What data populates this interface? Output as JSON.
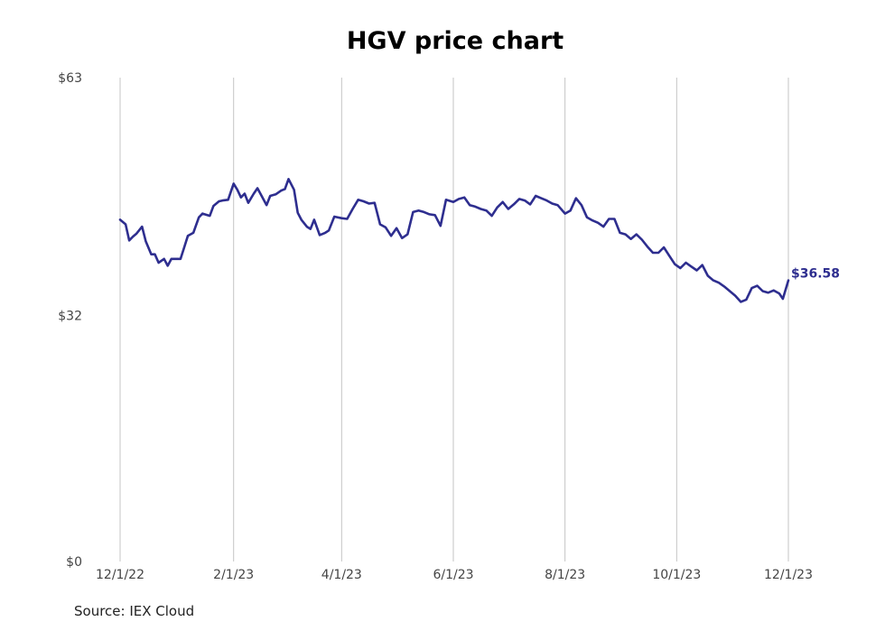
{
  "chart_data": {
    "type": "line",
    "title": "HGV price chart",
    "source": "Source: IEX Cloud",
    "xlabel": "",
    "ylabel": "",
    "x_tick_labels": [
      "12/1/22",
      "2/1/23",
      "4/1/23",
      "6/1/23",
      "8/1/23",
      "10/1/23",
      "12/1/23"
    ],
    "x_tick_dates": [
      "2022-12-01",
      "2023-02-01",
      "2023-04-01",
      "2023-06-01",
      "2023-08-01",
      "2023-10-01",
      "2023-12-01"
    ],
    "y_tick_values": [
      0,
      32,
      63
    ],
    "y_tick_labels": [
      "$0",
      "$32",
      "$63"
    ],
    "ylim": [
      0,
      63
    ],
    "xlim": [
      "2022-12-01",
      "2023-12-01"
    ],
    "grid": "vertical",
    "line_color": "#2e2e8f",
    "last_value_label": "$36.58",
    "series": [
      {
        "points": [
          [
            "2022-12-01",
            44.5
          ],
          [
            "2022-12-04",
            43.9
          ],
          [
            "2022-12-06",
            41.8
          ],
          [
            "2022-12-08",
            42.3
          ],
          [
            "2022-12-10",
            42.7
          ],
          [
            "2022-12-13",
            43.6
          ],
          [
            "2022-12-15",
            41.7
          ],
          [
            "2022-12-18",
            40.0
          ],
          [
            "2022-12-20",
            40.0
          ],
          [
            "2022-12-22",
            38.9
          ],
          [
            "2022-12-25",
            39.4
          ],
          [
            "2022-12-27",
            38.5
          ],
          [
            "2022-12-29",
            39.4
          ],
          [
            "2023-01-03",
            39.4
          ],
          [
            "2023-01-05",
            40.9
          ],
          [
            "2023-01-07",
            42.4
          ],
          [
            "2023-01-10",
            42.8
          ],
          [
            "2023-01-13",
            44.8
          ],
          [
            "2023-01-15",
            45.3
          ],
          [
            "2023-01-19",
            45.0
          ],
          [
            "2023-01-21",
            46.3
          ],
          [
            "2023-01-24",
            46.9
          ],
          [
            "2023-01-26",
            47.0
          ],
          [
            "2023-01-29",
            47.1
          ],
          [
            "2023-02-01",
            49.2
          ],
          [
            "2023-02-03",
            48.4
          ],
          [
            "2023-02-05",
            47.4
          ],
          [
            "2023-02-07",
            47.9
          ],
          [
            "2023-02-09",
            46.7
          ],
          [
            "2023-02-12",
            47.9
          ],
          [
            "2023-02-14",
            48.6
          ],
          [
            "2023-02-17",
            47.3
          ],
          [
            "2023-02-19",
            46.4
          ],
          [
            "2023-02-21",
            47.6
          ],
          [
            "2023-02-24",
            47.8
          ],
          [
            "2023-02-27",
            48.3
          ],
          [
            "2023-03-01",
            48.5
          ],
          [
            "2023-03-03",
            49.8
          ],
          [
            "2023-03-06",
            48.4
          ],
          [
            "2023-03-08",
            45.4
          ],
          [
            "2023-03-10",
            44.5
          ],
          [
            "2023-03-13",
            43.6
          ],
          [
            "2023-03-15",
            43.3
          ],
          [
            "2023-03-17",
            44.5
          ],
          [
            "2023-03-20",
            42.5
          ],
          [
            "2023-03-23",
            42.8
          ],
          [
            "2023-03-25",
            43.1
          ],
          [
            "2023-03-28",
            44.9
          ],
          [
            "2023-04-01",
            44.7
          ],
          [
            "2023-04-04",
            44.6
          ],
          [
            "2023-04-07",
            45.9
          ],
          [
            "2023-04-10",
            47.1
          ],
          [
            "2023-04-13",
            46.9
          ],
          [
            "2023-04-16",
            46.6
          ],
          [
            "2023-04-19",
            46.7
          ],
          [
            "2023-04-22",
            43.9
          ],
          [
            "2023-04-25",
            43.5
          ],
          [
            "2023-04-28",
            42.4
          ],
          [
            "2023-05-01",
            43.4
          ],
          [
            "2023-05-04",
            42.1
          ],
          [
            "2023-05-07",
            42.6
          ],
          [
            "2023-05-10",
            45.5
          ],
          [
            "2023-05-13",
            45.7
          ],
          [
            "2023-05-16",
            45.5
          ],
          [
            "2023-05-19",
            45.2
          ],
          [
            "2023-05-22",
            45.1
          ],
          [
            "2023-05-25",
            43.7
          ],
          [
            "2023-05-28",
            47.1
          ],
          [
            "2023-06-01",
            46.8
          ],
          [
            "2023-06-04",
            47.2
          ],
          [
            "2023-06-07",
            47.4
          ],
          [
            "2023-06-10",
            46.4
          ],
          [
            "2023-06-13",
            46.2
          ],
          [
            "2023-06-16",
            45.9
          ],
          [
            "2023-06-19",
            45.7
          ],
          [
            "2023-06-22",
            45.0
          ],
          [
            "2023-06-25",
            46.1
          ],
          [
            "2023-06-28",
            46.8
          ],
          [
            "2023-07-01",
            45.9
          ],
          [
            "2023-07-04",
            46.5
          ],
          [
            "2023-07-07",
            47.2
          ],
          [
            "2023-07-10",
            47.0
          ],
          [
            "2023-07-13",
            46.5
          ],
          [
            "2023-07-16",
            47.6
          ],
          [
            "2023-07-19",
            47.3
          ],
          [
            "2023-07-22",
            47.0
          ],
          [
            "2023-07-25",
            46.6
          ],
          [
            "2023-07-28",
            46.4
          ],
          [
            "2023-08-01",
            45.3
          ],
          [
            "2023-08-04",
            45.7
          ],
          [
            "2023-08-07",
            47.3
          ],
          [
            "2023-08-10",
            46.4
          ],
          [
            "2023-08-13",
            44.8
          ],
          [
            "2023-08-16",
            44.4
          ],
          [
            "2023-08-19",
            44.1
          ],
          [
            "2023-08-22",
            43.6
          ],
          [
            "2023-08-25",
            44.6
          ],
          [
            "2023-08-28",
            44.6
          ],
          [
            "2023-08-31",
            42.8
          ],
          [
            "2023-09-03",
            42.6
          ],
          [
            "2023-09-06",
            42.0
          ],
          [
            "2023-09-09",
            42.6
          ],
          [
            "2023-09-12",
            41.9
          ],
          [
            "2023-09-15",
            41.0
          ],
          [
            "2023-09-18",
            40.2
          ],
          [
            "2023-09-21",
            40.2
          ],
          [
            "2023-09-24",
            40.9
          ],
          [
            "2023-09-27",
            39.8
          ],
          [
            "2023-09-30",
            38.7
          ],
          [
            "2023-10-03",
            38.2
          ],
          [
            "2023-10-06",
            38.9
          ],
          [
            "2023-10-09",
            38.4
          ],
          [
            "2023-10-12",
            37.9
          ],
          [
            "2023-10-15",
            38.6
          ],
          [
            "2023-10-18",
            37.2
          ],
          [
            "2023-10-21",
            36.6
          ],
          [
            "2023-10-24",
            36.3
          ],
          [
            "2023-10-27",
            35.8
          ],
          [
            "2023-10-30",
            35.2
          ],
          [
            "2023-11-02",
            34.6
          ],
          [
            "2023-11-05",
            33.8
          ],
          [
            "2023-11-08",
            34.1
          ],
          [
            "2023-11-11",
            35.6
          ],
          [
            "2023-11-14",
            35.9
          ],
          [
            "2023-11-17",
            35.2
          ],
          [
            "2023-11-20",
            35.0
          ],
          [
            "2023-11-23",
            35.3
          ],
          [
            "2023-11-26",
            34.9
          ],
          [
            "2023-11-28",
            34.2
          ],
          [
            "2023-12-01",
            36.6
          ]
        ]
      }
    ]
  }
}
